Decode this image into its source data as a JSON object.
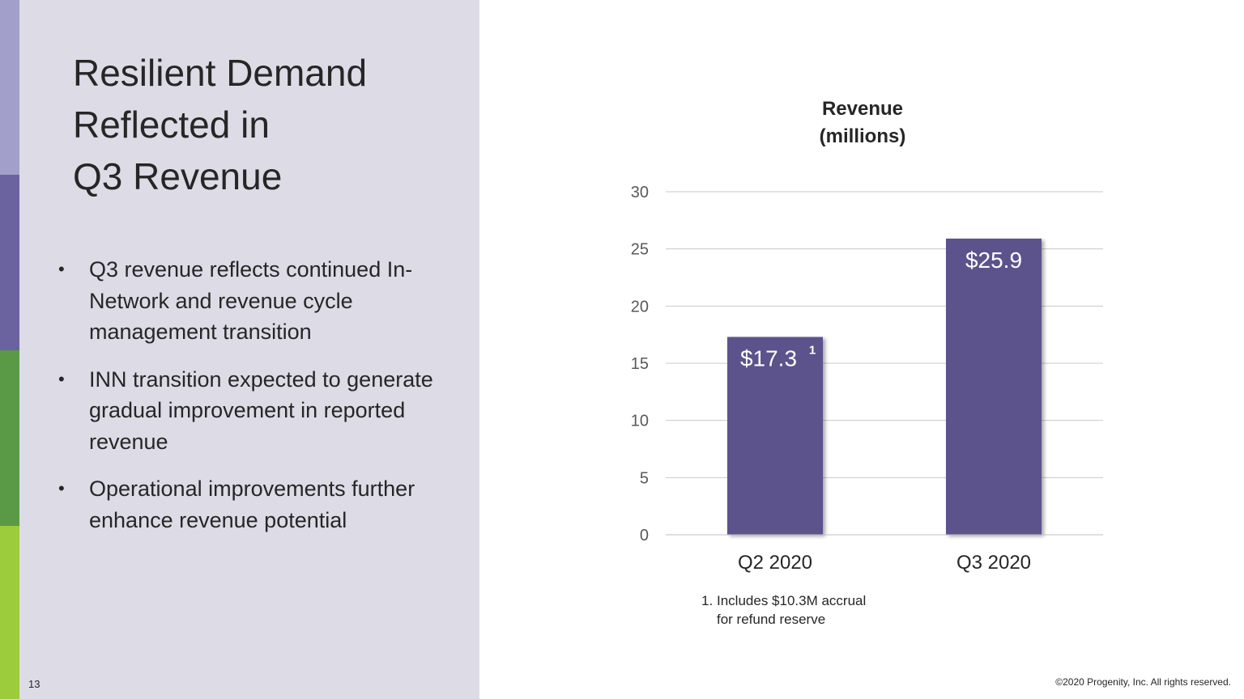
{
  "slide": {
    "title_lines": [
      "Resilient Demand",
      "Reflected in",
      "Q3 Revenue"
    ],
    "bullets": [
      "Q3 revenue reflects continued In-Network and revenue cycle management transition",
      "INN transition expected to generate gradual improvement in reported revenue",
      "Operational improvements further enhance revenue potential"
    ],
    "bullet_glyph": "•",
    "page_number": "13",
    "copyright": "©2020 Progenity,  Inc. All rights reserved."
  },
  "footnote": {
    "number": "1.",
    "text_line1": "Includes $10.3M accrual",
    "text_line2": "for refund reserve"
  },
  "chart_data": {
    "type": "bar",
    "title_line1": "Revenue",
    "title_line2": "(millions)",
    "categories": [
      "Q2 2020",
      "Q3 2020"
    ],
    "values": [
      17.3,
      25.9
    ],
    "data_labels": [
      "$17.3",
      "$25.9"
    ],
    "label_superscripts": [
      "1",
      ""
    ],
    "y_ticks": [
      0,
      5,
      10,
      15,
      20,
      25,
      30
    ],
    "ylim": [
      0,
      30
    ],
    "xlabel": "",
    "ylabel": "",
    "grid": true,
    "bar_color": "#5b528c",
    "grid_color": "#c9c9c9"
  }
}
